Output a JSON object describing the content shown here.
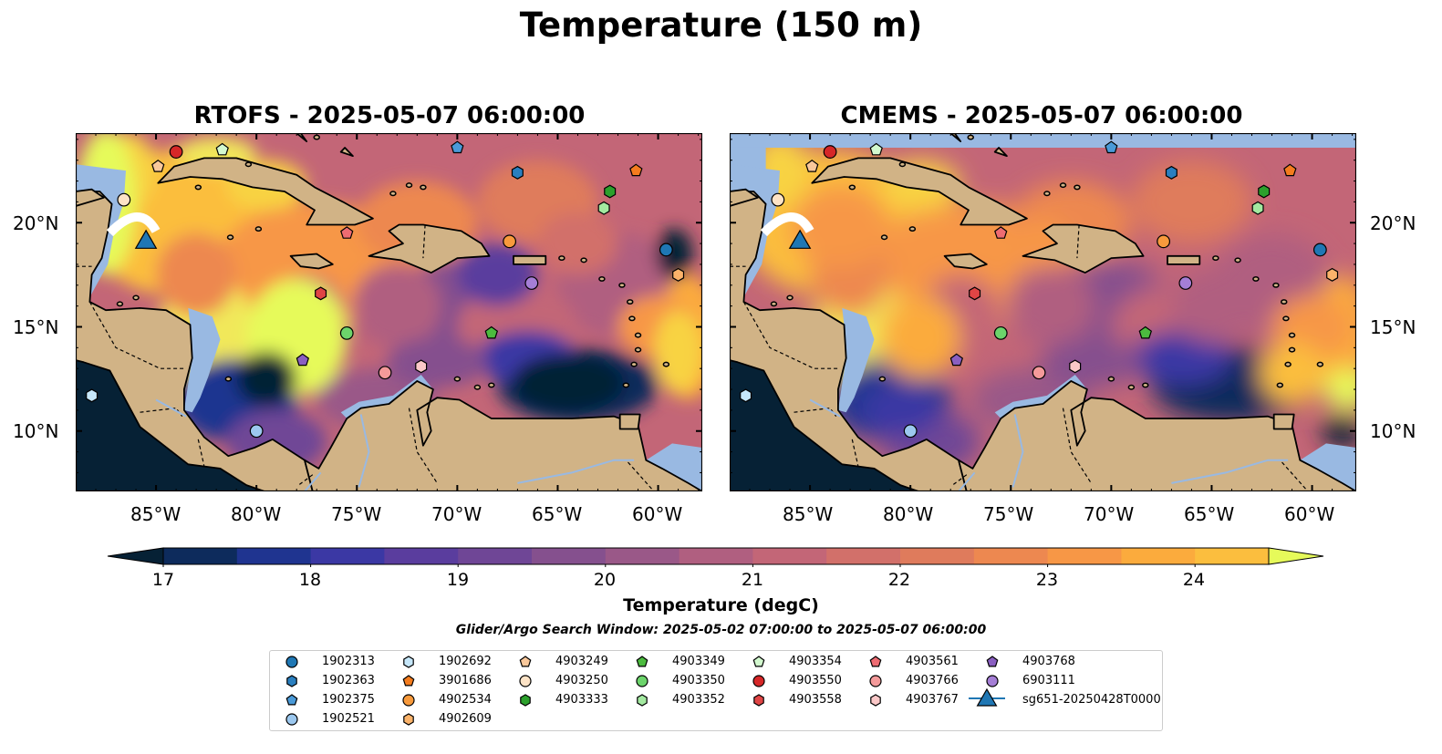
{
  "figure": {
    "suptitle": "Temperature (150 m)",
    "panels": [
      {
        "id": "rtofs",
        "title": "RTOFS - 2025-05-07 06:00:00"
      },
      {
        "id": "cmems",
        "title": "CMEMS - 2025-05-07 06:00:00"
      }
    ],
    "lon_ticks": [
      "85°W",
      "80°W",
      "75°W",
      "70°W",
      "65°W",
      "60°W"
    ],
    "lat_ticks": [
      "20°N",
      "15°N",
      "10°N"
    ],
    "colorbar": {
      "title": "Temperature (degC)",
      "ticks": [
        "17",
        "18",
        "19",
        "20",
        "21",
        "22",
        "23",
        "24"
      ],
      "colors": [
        "#062135",
        "#0d2b5c",
        "#1f3490",
        "#3b38a4",
        "#5a3d9e",
        "#6f4696",
        "#85508e",
        "#9a5888",
        "#b05f80",
        "#c36677",
        "#d2706a",
        "#df7b5c",
        "#ed8850",
        "#f79746",
        "#fbab3d",
        "#fbbe3e",
        "#f8d343",
        "#f1e85a",
        "#e6fa5a"
      ]
    },
    "search_window": "Glider/Argo Search Window: 2025-05-02 07:00:00 to 2025-05-07 06:00:00",
    "legend": [
      {
        "label": "1902313",
        "marker": "circle",
        "color": "#1f77b4"
      },
      {
        "label": "1902363",
        "marker": "hexagon",
        "color": "#2a7fbf"
      },
      {
        "label": "1902375",
        "marker": "pentagon",
        "color": "#4a9ad8"
      },
      {
        "label": "1902521",
        "marker": "circle",
        "color": "#9cc8ef"
      },
      {
        "label": "1902692",
        "marker": "hexagon",
        "color": "#c6e7fa"
      },
      {
        "label": "3901686",
        "marker": "pentagon",
        "color": "#f47c1e"
      },
      {
        "label": "4902534",
        "marker": "circle",
        "color": "#f89a3c"
      },
      {
        "label": "4902609",
        "marker": "hexagon",
        "color": "#fbb36a"
      },
      {
        "label": "4903249",
        "marker": "pentagon",
        "color": "#f9c89b"
      },
      {
        "label": "4903250",
        "marker": "circle",
        "color": "#fde3c6"
      },
      {
        "label": "4903333",
        "marker": "hexagon",
        "color": "#2ca02c"
      },
      {
        "label": "4903349",
        "marker": "pentagon",
        "color": "#4cbb3f"
      },
      {
        "label": "4903350",
        "marker": "circle",
        "color": "#6cd46b"
      },
      {
        "label": "4903352",
        "marker": "hexagon",
        "color": "#a3e9a0"
      },
      {
        "label": "4903354",
        "marker": "pentagon",
        "color": "#d3f9cf"
      },
      {
        "label": "4903550",
        "marker": "circle",
        "color": "#d62728"
      },
      {
        "label": "4903558",
        "marker": "hexagon",
        "color": "#e04545"
      },
      {
        "label": "4903561",
        "marker": "pentagon",
        "color": "#ee6c72"
      },
      {
        "label": "4903766",
        "marker": "circle",
        "color": "#f49a9a"
      },
      {
        "label": "4903767",
        "marker": "hexagon",
        "color": "#fbc8c8"
      },
      {
        "label": "4903768",
        "marker": "pentagon",
        "color": "#8a5fc1"
      },
      {
        "label": "6903111",
        "marker": "circle",
        "color": "#a57ed6"
      },
      {
        "label": "sg651-20250428T0000",
        "marker": "triangle",
        "color": "#1f77b4"
      }
    ],
    "platforms": [
      {
        "label": "1902313",
        "lon": -59.6,
        "lat": 18.7
      },
      {
        "label": "1902363",
        "lon": -67.0,
        "lat": 22.4
      },
      {
        "label": "1902375",
        "lon": -70.0,
        "lat": 23.6
      },
      {
        "label": "1902521",
        "lon": -80.0,
        "lat": 10.0
      },
      {
        "label": "1902692",
        "lon": -88.2,
        "lat": 11.7
      },
      {
        "label": "3901686",
        "lon": -61.1,
        "lat": 22.5
      },
      {
        "label": "4902534",
        "lon": -67.4,
        "lat": 19.1
      },
      {
        "label": "4902609",
        "lon": -59.0,
        "lat": 17.5
      },
      {
        "label": "4903249",
        "lon": -84.9,
        "lat": 22.7
      },
      {
        "label": "4903250",
        "lon": -86.6,
        "lat": 21.1
      },
      {
        "label": "4903333",
        "lon": -62.4,
        "lat": 21.5
      },
      {
        "label": "4903349",
        "lon": -68.3,
        "lat": 14.7
      },
      {
        "label": "4903350",
        "lon": -75.5,
        "lat": 14.7
      },
      {
        "label": "4903352",
        "lon": -62.7,
        "lat": 20.7
      },
      {
        "label": "4903354",
        "lon": -81.7,
        "lat": 23.5
      },
      {
        "label": "4903550",
        "lon": -84.0,
        "lat": 23.4
      },
      {
        "label": "4903558",
        "lon": -76.8,
        "lat": 16.6
      },
      {
        "label": "4903561",
        "lon": -75.5,
        "lat": 19.5
      },
      {
        "label": "4903766",
        "lon": -73.6,
        "lat": 12.8
      },
      {
        "label": "4903767",
        "lon": -71.8,
        "lat": 13.1
      },
      {
        "label": "4903768",
        "lon": -77.7,
        "lat": 13.4
      },
      {
        "label": "6903111",
        "lon": -66.3,
        "lat": 17.1
      },
      {
        "label": "sg651-20250428T0000",
        "lon": -85.5,
        "lat": 19.2
      }
    ]
  }
}
